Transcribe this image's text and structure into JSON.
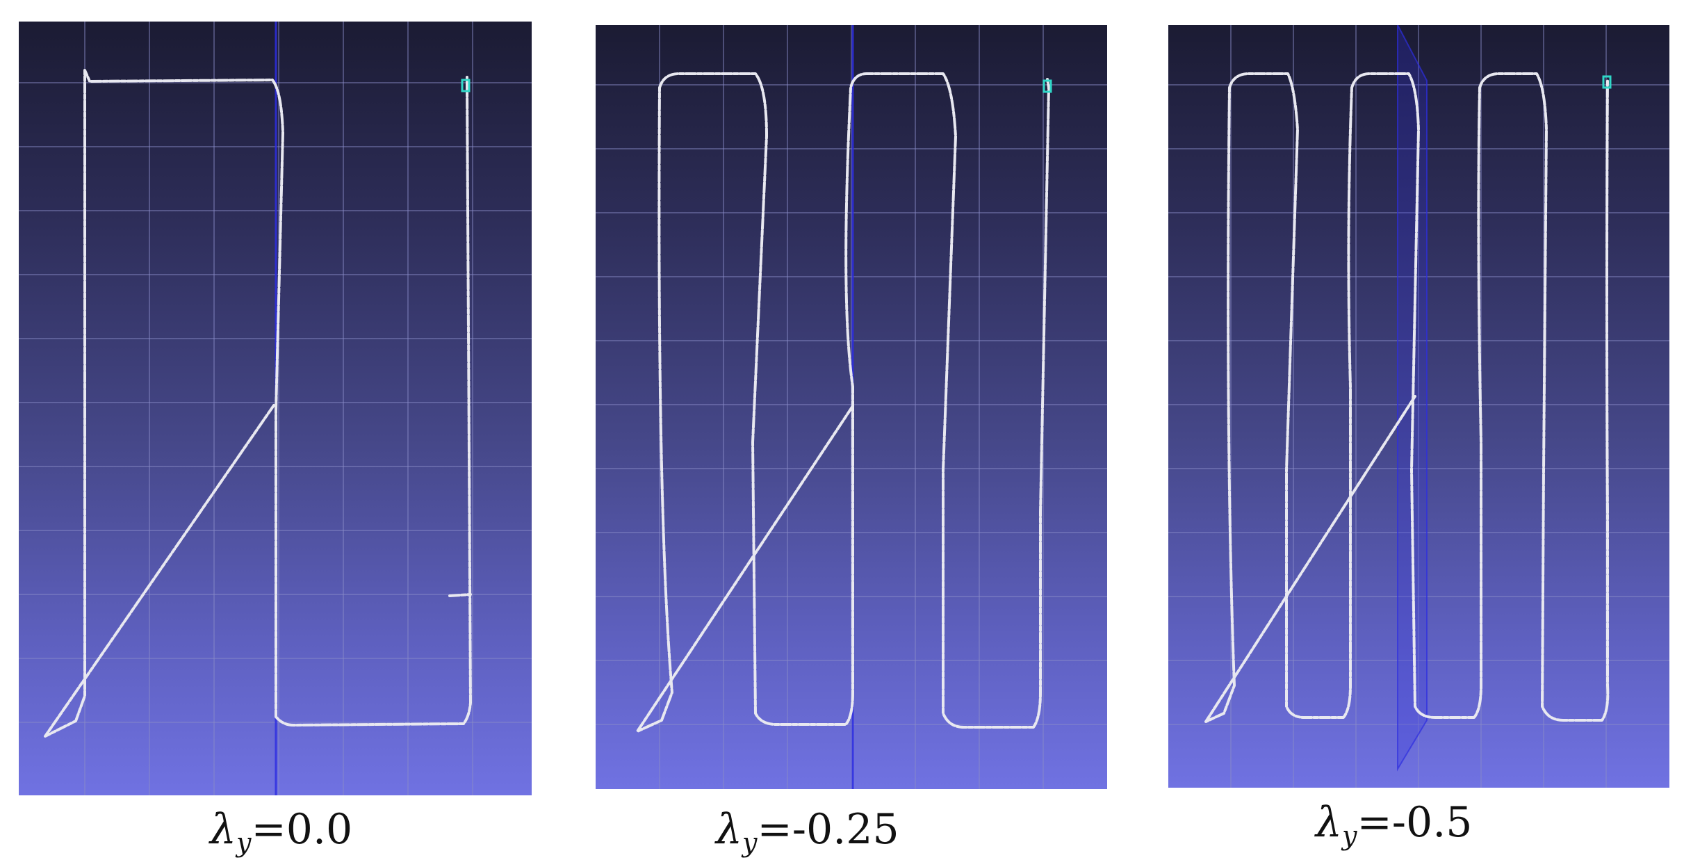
{
  "panels": [
    {
      "id": "p1",
      "loops": 1,
      "caption": {
        "symbol": "λ",
        "sub": "y",
        "value": "=0.0"
      }
    },
    {
      "id": "p2",
      "loops": 2,
      "caption": {
        "symbol": "λ",
        "sub": "y",
        "value": "=-0.25"
      }
    },
    {
      "id": "p3",
      "loops": 3,
      "caption": {
        "symbol": "λ",
        "sub": "y",
        "value": "=-0.5"
      }
    }
  ],
  "colors": {
    "trajectory": "#e8e8f0",
    "grid": "#8a8cc8",
    "axis": "#2e2ee0",
    "marker": "#30d8c8"
  }
}
